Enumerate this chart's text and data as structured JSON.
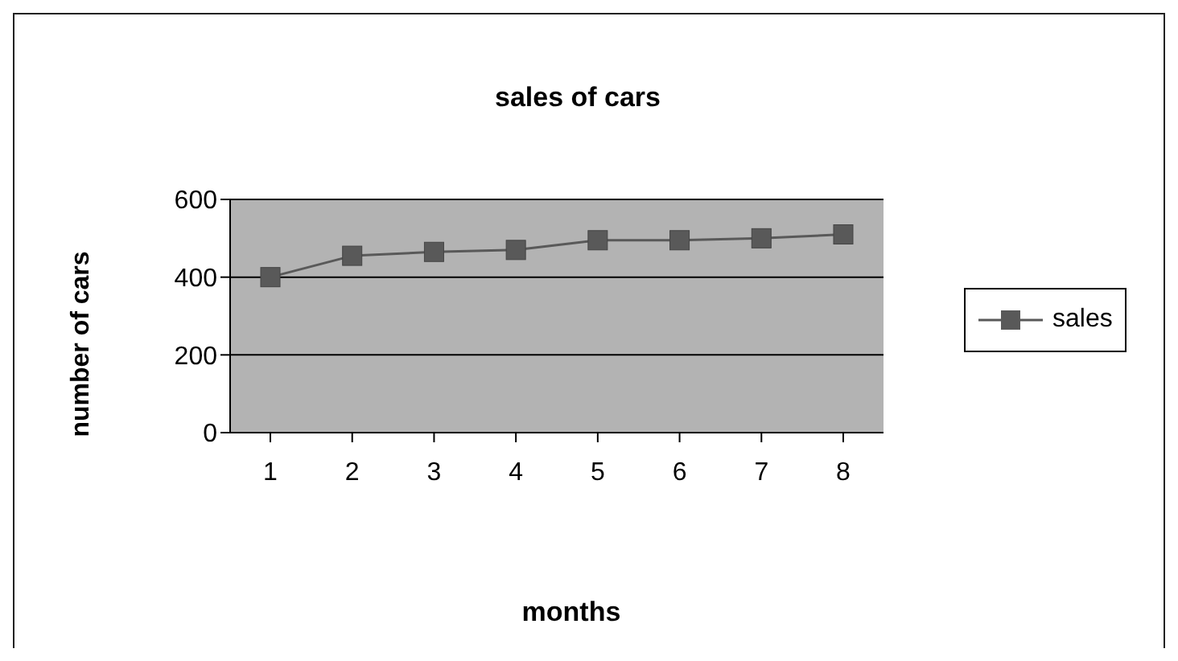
{
  "chart_data": {
    "type": "line",
    "title": "sales of cars",
    "xlabel": "months",
    "ylabel": "number of cars",
    "categories": [
      "1",
      "2",
      "3",
      "4",
      "5",
      "6",
      "7",
      "8"
    ],
    "series": [
      {
        "name": "sales",
        "color": "#595959",
        "values": [
          400,
          455,
          465,
          470,
          495,
          495,
          500,
          510
        ]
      }
    ],
    "ylim": [
      0,
      600
    ],
    "yticks": [
      0,
      200,
      400,
      600
    ],
    "grid": "y",
    "legend": "right",
    "marker": "square",
    "line_style": "solid"
  }
}
